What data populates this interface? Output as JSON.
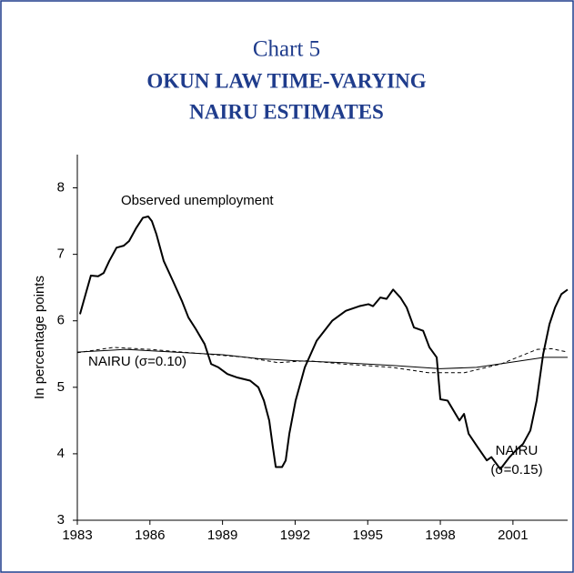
{
  "chart_data": {
    "type": "line",
    "title": "Chart 5",
    "subtitle": [
      "OKUN LAW TIME-VARYING",
      "NAIRU ESTIMATES"
    ],
    "y_label": "In percentage points",
    "xlim": [
      1983,
      2003.26
    ],
    "xticks": [
      1983,
      1986,
      1989,
      1992,
      1995,
      1998,
      2001
    ],
    "ylim": [
      3,
      8.5
    ],
    "yticks": [
      3,
      4,
      5,
      6,
      7,
      8
    ],
    "grid": false,
    "series": [
      {
        "name": "Observed unemployment",
        "color": "#000000",
        "line_style": "solid",
        "width": 2,
        "x": [
          1983.11,
          1983.38,
          1983.56,
          1983.86,
          1984.09,
          1984.32,
          1984.62,
          1984.92,
          1985.14,
          1985.44,
          1985.71,
          1985.93,
          1986.08,
          1986.27,
          1986.57,
          1986.95,
          1987.32,
          1987.59,
          1987.89,
          1988.26,
          1988.53,
          1988.83,
          1989.2,
          1989.58,
          1990.14,
          1990.48,
          1990.71,
          1990.93,
          1991.08,
          1991.2,
          1991.46,
          1991.61,
          1991.76,
          1992.02,
          1992.4,
          1992.89,
          1993.53,
          1994.09,
          1994.65,
          1995.03,
          1995.22,
          1995.52,
          1995.78,
          1996.05,
          1996.35,
          1996.61,
          1996.91,
          1997.29,
          1997.55,
          1997.85,
          1998,
          1998.3,
          1998.79,
          1998.98,
          1999.17,
          1999.54,
          1999.92,
          2000.11,
          2000.48,
          2000.86,
          2001.12,
          2001.42,
          2001.72,
          2001.98,
          2002.25,
          2002.51,
          2002.74,
          2003,
          2003.26
        ],
        "values": [
          6.1,
          6.45,
          6.68,
          6.67,
          6.72,
          6.9,
          7.1,
          7.13,
          7.2,
          7.4,
          7.55,
          7.57,
          7.5,
          7.3,
          6.9,
          6.6,
          6.3,
          6.05,
          5.88,
          5.65,
          5.35,
          5.3,
          5.2,
          5.15,
          5.1,
          5.0,
          4.8,
          4.5,
          4.1,
          3.8,
          3.8,
          3.9,
          4.3,
          4.8,
          5.3,
          5.7,
          6.0,
          6.15,
          6.22,
          6.25,
          6.22,
          6.35,
          6.33,
          6.47,
          6.35,
          6.2,
          5.9,
          5.85,
          5.6,
          5.45,
          4.82,
          4.8,
          4.5,
          4.6,
          4.3,
          4.1,
          3.9,
          3.95,
          3.77,
          3.95,
          4.05,
          4.15,
          4.35,
          4.8,
          5.5,
          5.95,
          6.2,
          6.4,
          6.47
        ]
      },
      {
        "name": "NAIRU (σ=0.10)",
        "color": "#000000",
        "line_style": "solid",
        "width": 1,
        "x": [
          1983,
          1985,
          1987,
          1989,
          1990.5,
          1992,
          1994,
          1996,
          1998,
          1999.5,
          2001,
          2002.3,
          2003.26
        ],
        "values": [
          5.53,
          5.57,
          5.53,
          5.49,
          5.43,
          5.4,
          5.37,
          5.33,
          5.28,
          5.3,
          5.38,
          5.45,
          5.45
        ]
      },
      {
        "name": "NAIRU (σ=0.15)",
        "color": "#000000",
        "line_style": "dashed",
        "width": 1,
        "x": [
          1983,
          1984.5,
          1986,
          1988,
          1990,
          1991.3,
          1992.5,
          1994,
          1996,
          1997.5,
          1999,
          2000.5,
          2002,
          2002.6,
          2003.26
        ],
        "values": [
          5.52,
          5.6,
          5.57,
          5.51,
          5.45,
          5.37,
          5.4,
          5.35,
          5.3,
          5.22,
          5.22,
          5.35,
          5.57,
          5.58,
          5.53
        ]
      }
    ]
  }
}
